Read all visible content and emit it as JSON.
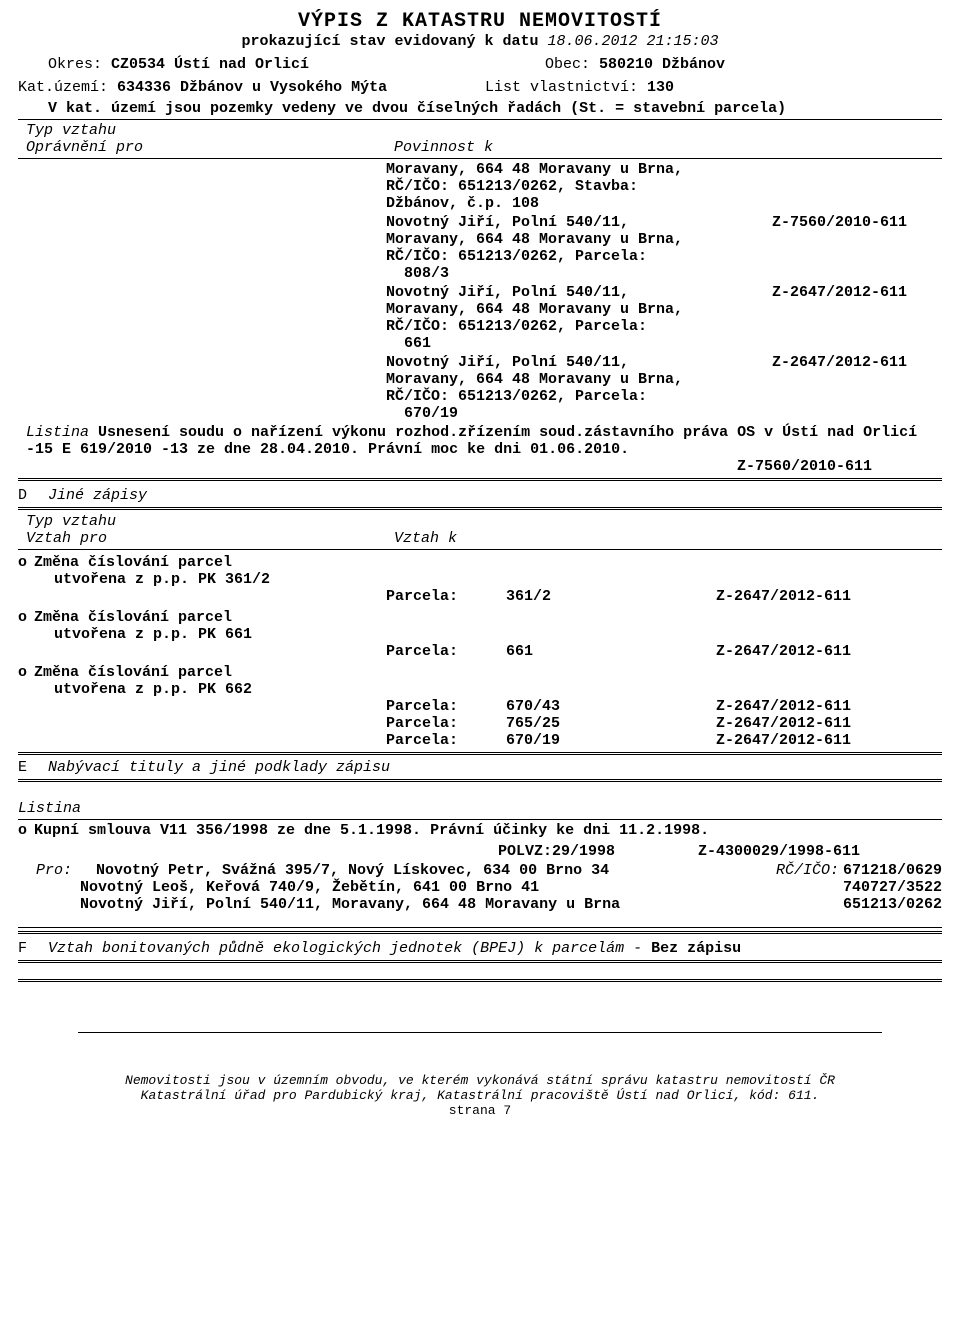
{
  "title": "VÝPIS Z KATASTRU NEMOVITOSTÍ",
  "subtitle_prefix": "prokazující stav evidovaný k datu ",
  "subtitle_date": "18.06.2012 21:15:03",
  "header": {
    "okres_lbl": "Okres: ",
    "okres_val": "CZ0534 Ústí nad Orlicí",
    "obec_lbl": "Obec: ",
    "obec_val": "580210 Džbánov",
    "kat_lbl": "Kat.území: ",
    "kat_val": "634336 Džbánov u Vysokého Mýta",
    "list_lbl": "List vlastnictví: ",
    "list_val": "130",
    "note": "V kat. území jsou pozemky vedeny ve dvou číselných řadách  (St. = stavební parcela)"
  },
  "typ_vztahu": "Typ vztahu",
  "opravneni": "Oprávnění pro",
  "povinnost": "Povinnost k",
  "entries": [
    {
      "lines": [
        "Moravany, 664 48 Moravany u Brna,",
        "RČ/IČO: 651213/0262, Stavba:",
        "Džbánov, č.p. 108"
      ],
      "ref": ""
    },
    {
      "lines": [
        "Novotný Jiří, Polní 540/11,",
        "Moravany, 664 48 Moravany u Brna,",
        "RČ/IČO: 651213/0262, Parcela:",
        "  808/3"
      ],
      "ref": "Z-7560/2010-611"
    },
    {
      "lines": [
        "Novotný Jiří, Polní 540/11,",
        "Moravany, 664 48 Moravany u Brna,",
        "RČ/IČO: 651213/0262, Parcela:",
        "  661"
      ],
      "ref": "Z-2647/2012-611"
    },
    {
      "lines": [
        "Novotný Jiří, Polní 540/11,",
        "Moravany, 664 48 Moravany u Brna,",
        "RČ/IČO: 651213/0262, Parcela:",
        "  670/19"
      ],
      "ref": "Z-2647/2012-611"
    }
  ],
  "listina_lbl": "Listina ",
  "listina_text": "Usnesení soudu o nařízení výkonu rozhod.zřízením soud.zástavního práva OS v Ústí nad Orlicí -15 E 619/2010 -13 ze dne 28.04.2010. Právní moc ke dni 01.06.2010.",
  "listina_ref": "Z-7560/2010-611",
  "sec_d": {
    "letter": "D",
    "title": "Jiné zápisy"
  },
  "vztah_pro": "Vztah pro",
  "vztah_k": "Vztah k",
  "zmena_title": "Změna číslování parcel",
  "zmena": [
    {
      "sub": "utvořena z p.p. PK 361/2",
      "parcels": [
        {
          "lbl": "Parcela:",
          "val": "361/2",
          "ref": "Z-2647/2012-611"
        }
      ]
    },
    {
      "sub": "utvořena z p.p. PK 661",
      "parcels": [
        {
          "lbl": "Parcela:",
          "val": "661",
          "ref": "Z-2647/2012-611"
        }
      ]
    },
    {
      "sub": "utvořena z p.p. PK 662",
      "parcels": [
        {
          "lbl": "Parcela:",
          "val": "670/43",
          "ref": "Z-2647/2012-611"
        },
        {
          "lbl": "Parcela:",
          "val": "765/25",
          "ref": "Z-2647/2012-611"
        },
        {
          "lbl": "Parcela:",
          "val": "670/19",
          "ref": "Z-2647/2012-611"
        }
      ]
    }
  ],
  "sec_e": {
    "letter": "E",
    "title": "Nabývací tituly a jiné podklady zápisu"
  },
  "listina_word": "Listina",
  "kupni": "Kupní smlouva V11 356/1998 ze dne 5.1.1998. Právní účinky ke dni 11.2.1998.",
  "polvz": "POLVZ:29/1998",
  "polvz_ref": "Z-4300029/1998-611",
  "pro_lbl": "Pro:",
  "rc_lbl": "RČ/IČO:",
  "people": [
    {
      "name": "Novotný Petr, Svážná 395/7, Nový Lískovec, 634 00 Brno 34",
      "id": "671218/0629"
    },
    {
      "name": "Novotný Leoš, Keřová 740/9, Žebětín, 641 00 Brno 41",
      "id": "740727/3522"
    },
    {
      "name": "Novotný Jiří, Polní 540/11, Moravany, 664 48 Moravany u Brna",
      "id": "651213/0262"
    }
  ],
  "sec_f": {
    "letter": "F",
    "title": "Vztah bonitovaných půdně ekologických jednotek (BPEJ) k parcelám",
    "sep": " - ",
    "suffix": "Bez zápisu"
  },
  "footer": {
    "l1": "Nemovitosti jsou v územním obvodu, ve kterém vykonává státní správu katastru nemovitostí ČR",
    "l2": "Katastrální úřad pro Pardubický kraj, Katastrální pracoviště Ústí nad Orlicí, kód: 611.",
    "l3": "strana 7"
  }
}
